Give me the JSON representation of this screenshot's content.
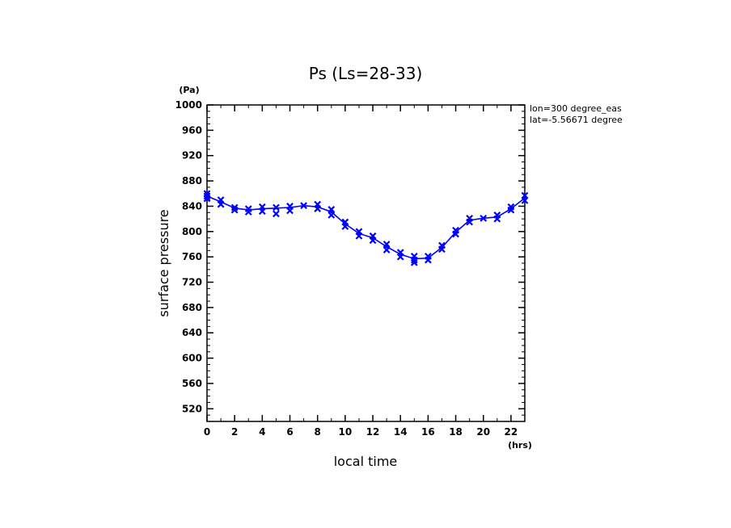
{
  "chart_data": {
    "type": "line",
    "title": "Ps (Ls=28-33)",
    "xlabel": "local time",
    "ylabel": "surface pressure",
    "x_unit": "(hrs)",
    "y_unit": "(Pa)",
    "annotations": [
      "lon=300 degree_eas",
      "lat=-5.56671 degree"
    ],
    "xlim": [
      0,
      23
    ],
    "ylim": [
      500,
      1000
    ],
    "x_ticks": [
      0,
      2,
      4,
      6,
      8,
      10,
      12,
      14,
      16,
      18,
      20,
      22
    ],
    "y_ticks": [
      520,
      560,
      600,
      640,
      680,
      720,
      760,
      800,
      840,
      880,
      920,
      960,
      1000
    ],
    "color": "#0000ff",
    "grid": false,
    "series": [
      {
        "name": "",
        "x": [
          0,
          1,
          2,
          3,
          4,
          5,
          6,
          7,
          8,
          9,
          10,
          11,
          12,
          13,
          14,
          15,
          16,
          17,
          18,
          19,
          20,
          21,
          22,
          23
        ],
        "y": [
          856,
          847,
          837,
          834,
          836,
          837,
          838,
          841,
          839,
          831,
          812,
          797,
          790,
          776,
          764,
          757,
          758,
          775,
          799,
          818,
          821,
          823,
          836,
          853
        ]
      }
    ],
    "markers": {
      "x": [
        0,
        0,
        0,
        1,
        1,
        2,
        2,
        3,
        3,
        4,
        4,
        5,
        5,
        6,
        6,
        7,
        8,
        8,
        9,
        9,
        10,
        10,
        11,
        11,
        12,
        12,
        13,
        13,
        14,
        14,
        15,
        15,
        15,
        16,
        16,
        17,
        17,
        18,
        18,
        19,
        19,
        20,
        21,
        21,
        22,
        22,
        23,
        23
      ],
      "y": [
        852,
        860,
        856,
        843,
        850,
        834,
        838,
        831,
        836,
        832,
        839,
        828,
        838,
        833,
        840,
        841,
        836,
        843,
        826,
        835,
        808,
        815,
        793,
        800,
        786,
        793,
        771,
        780,
        760,
        767,
        751,
        755,
        761,
        755,
        761,
        772,
        778,
        796,
        802,
        815,
        821,
        821,
        820,
        826,
        834,
        839,
        849,
        857
      ]
    }
  }
}
